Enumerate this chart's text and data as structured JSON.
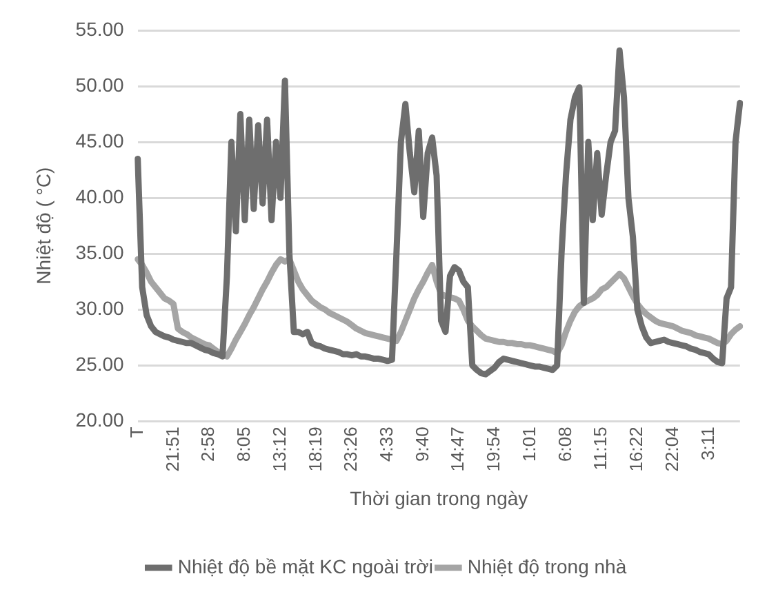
{
  "chart_data": {
    "type": "line",
    "xlabel": "Thời gian trong ngày",
    "ylabel": "Nhiệt độ ( °C)",
    "categories": [
      "T",
      null,
      null,
      null,
      null,
      null,
      null,
      null,
      "21:51",
      null,
      null,
      null,
      null,
      null,
      null,
      null,
      "2:58",
      null,
      null,
      null,
      null,
      null,
      null,
      null,
      "8:05",
      null,
      null,
      null,
      null,
      null,
      null,
      null,
      "13:12",
      null,
      null,
      null,
      null,
      null,
      null,
      null,
      "18:19",
      null,
      null,
      null,
      null,
      null,
      null,
      null,
      "23:26",
      null,
      null,
      null,
      null,
      null,
      null,
      null,
      "4:33",
      null,
      null,
      null,
      null,
      null,
      null,
      null,
      "9:40",
      null,
      null,
      null,
      null,
      null,
      null,
      null,
      "14:47",
      null,
      null,
      null,
      null,
      null,
      null,
      null,
      "19:54",
      null,
      null,
      null,
      null,
      null,
      null,
      null,
      "1:01",
      null,
      null,
      null,
      null,
      null,
      null,
      null,
      "6:08",
      null,
      null,
      null,
      null,
      null,
      null,
      null,
      "11:15",
      null,
      null,
      null,
      null,
      null,
      null,
      null,
      "16:22",
      null,
      null,
      null,
      null,
      null,
      null,
      null,
      "22:04",
      null,
      null,
      null,
      null,
      null,
      null,
      null,
      "3:11",
      null,
      null,
      null,
      null,
      null,
      null,
      null
    ],
    "series": [
      {
        "name": "Nhiệt độ bề mặt KC ngoài trời",
        "color": "#6e6e6e",
        "values": [
          43.5,
          32,
          29.5,
          28.5,
          28,
          27.8,
          27.6,
          27.5,
          27.3,
          27.2,
          27.1,
          27,
          27,
          26.8,
          26.6,
          26.4,
          26.3,
          26.1,
          26,
          25.8,
          33,
          45,
          37,
          47.5,
          38,
          47,
          39,
          46.5,
          39.5,
          47,
          38,
          45,
          40,
          50.5,
          35,
          28,
          28,
          27.8,
          28,
          27,
          26.8,
          26.7,
          26.5,
          26.4,
          26.3,
          26.2,
          26,
          26,
          25.9,
          26,
          25.8,
          25.8,
          25.7,
          25.6,
          25.6,
          25.5,
          25.4,
          25.5,
          35,
          45,
          48.4,
          44,
          40.5,
          46,
          38.3,
          44,
          45.4,
          42,
          29,
          28,
          33,
          33.8,
          33.5,
          32.5,
          32,
          25,
          24.6,
          24.3,
          24.2,
          24.5,
          24.8,
          25.3,
          25.6,
          25.5,
          25.4,
          25.3,
          25.2,
          25.1,
          25,
          24.9,
          24.9,
          24.8,
          24.7,
          24.6,
          25,
          35,
          42,
          47,
          49,
          49.9,
          30.6,
          45,
          38,
          44,
          38.5,
          42,
          45,
          46,
          53.2,
          49,
          40,
          36.5,
          30,
          28.5,
          27.5,
          27,
          27.1,
          27.2,
          27.3,
          27.1,
          27,
          26.9,
          26.8,
          26.7,
          26.5,
          26.4,
          26.2,
          26.1,
          26,
          25.6,
          25.3,
          25.2,
          31,
          32,
          45,
          48.5
        ]
      },
      {
        "name": "Nhiệt độ trong nhà",
        "color": "#a5a5a5",
        "values": [
          34.5,
          34,
          33.3,
          32.5,
          32,
          31.5,
          31,
          30.8,
          30.5,
          28.3,
          28,
          27.8,
          27.5,
          27.3,
          27.1,
          26.9,
          26.8,
          26.5,
          26.2,
          26,
          25.8,
          26.5,
          27.3,
          28,
          28.7,
          29.5,
          30.2,
          31,
          31.8,
          32.5,
          33.3,
          34,
          34.5,
          34.3,
          34.5,
          33.5,
          32.5,
          31.8,
          31.3,
          30.8,
          30.5,
          30.2,
          30,
          29.7,
          29.5,
          29.3,
          29.1,
          28.9,
          28.6,
          28.3,
          28.1,
          27.9,
          27.8,
          27.7,
          27.6,
          27.5,
          27.4,
          27.3,
          27.2,
          28,
          29,
          30,
          31,
          31.8,
          32.5,
          33.3,
          34,
          32.5,
          31.4,
          31.2,
          31.1,
          31,
          30.8,
          30,
          29,
          28.5,
          28.1,
          27.7,
          27.4,
          27.3,
          27.2,
          27.1,
          27.1,
          27,
          27,
          26.9,
          26.9,
          26.8,
          26.8,
          26.7,
          26.6,
          26.5,
          26.4,
          26.3,
          26.1,
          26.8,
          28,
          29,
          29.8,
          30.3,
          30.6,
          30.8,
          31,
          31.3,
          31.8,
          32,
          32.4,
          32.8,
          33.2,
          32.8,
          32,
          31.2,
          30.5,
          30,
          29.6,
          29.3,
          29,
          28.8,
          28.7,
          28.6,
          28.5,
          28.3,
          28.1,
          28,
          27.9,
          27.7,
          27.6,
          27.5,
          27.4,
          27.2,
          27,
          26.9,
          27.2,
          27.8,
          28.2,
          28.5
        ]
      }
    ],
    "ylim": [
      20,
      55
    ],
    "yticks": [
      {
        "value": 20,
        "label": "20.00"
      },
      {
        "value": 25,
        "label": "25.00"
      },
      {
        "value": 30,
        "label": "30.00"
      },
      {
        "value": 35,
        "label": "35.00"
      },
      {
        "value": 40,
        "label": "40.00"
      },
      {
        "value": 45,
        "label": "45.00"
      },
      {
        "value": 50,
        "label": "50.00"
      },
      {
        "value": 55,
        "label": "55.00"
      }
    ],
    "grid": "y",
    "legend": "bottom",
    "marker": "none",
    "line_style": "solid"
  }
}
